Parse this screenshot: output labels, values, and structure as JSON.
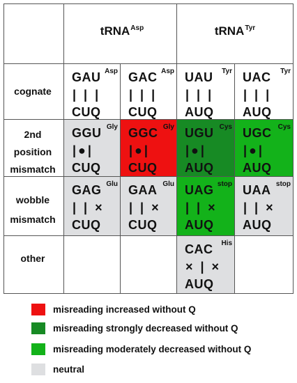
{
  "colors": {
    "red": "#ee1111",
    "dark_green": "#178a24",
    "green": "#13b21a",
    "grey": "#dedfe1"
  },
  "headers": {
    "asp": {
      "base": "tRNA",
      "sup": "Asp"
    },
    "tyr": {
      "base": "tRNA",
      "sup": "Tyr"
    }
  },
  "rows": [
    {
      "label_lines": [
        "cognate"
      ],
      "cells": [
        {
          "codon": "GAU",
          "aa": "Asp",
          "pairing": "| | |",
          "anticodon": "CUQ",
          "color": "none"
        },
        {
          "codon": "GAC",
          "aa": "Asp",
          "pairing": "| | |",
          "anticodon": "CUQ",
          "color": "none"
        },
        {
          "codon": "UAU",
          "aa": "Tyr",
          "pairing": "| | |",
          "anticodon": "AUQ",
          "color": "none"
        },
        {
          "codon": "UAC",
          "aa": "Tyr",
          "pairing": "| | |",
          "anticodon": "AUQ",
          "color": "none"
        }
      ]
    },
    {
      "label_lines": [
        "2nd",
        "position",
        "mismatch"
      ],
      "cells": [
        {
          "codon": "GGU",
          "aa": "Gly",
          "pairing": "|●|",
          "anticodon": "CUQ",
          "color": "grey"
        },
        {
          "codon": "GGC",
          "aa": "Gly",
          "pairing": "|●|",
          "anticodon": "CUQ",
          "color": "red"
        },
        {
          "codon": "UGU",
          "aa": "Cys",
          "pairing": "|●|",
          "anticodon": "AUQ",
          "color": "dark_green"
        },
        {
          "codon": "UGC",
          "aa": "Cys",
          "pairing": "|●|",
          "anticodon": "AUQ",
          "color": "green"
        }
      ]
    },
    {
      "label_lines": [
        "wobble",
        "mismatch"
      ],
      "cells": [
        {
          "codon": "GAG",
          "aa": "Glu",
          "pairing": "| | ×",
          "anticodon": "CUQ",
          "color": "grey"
        },
        {
          "codon": "GAA",
          "aa": "Glu",
          "pairing": "| | ×",
          "anticodon": "CUQ",
          "color": "grey"
        },
        {
          "codon": "UAG",
          "aa": "stop",
          "pairing": "| | ×",
          "anticodon": "AUQ",
          "color": "green"
        },
        {
          "codon": "UAA",
          "aa": "stop",
          "pairing": "| | ×",
          "anticodon": "AUQ",
          "color": "grey"
        }
      ]
    },
    {
      "label_lines": [
        "other"
      ],
      "cells": [
        null,
        null,
        {
          "codon": "CAC",
          "aa": "His",
          "pairing": "× | ×",
          "anticodon": "AUQ",
          "color": "grey"
        },
        null
      ]
    }
  ],
  "legend": [
    {
      "color": "red",
      "text": "misreading increased without Q"
    },
    {
      "color": "dark_green",
      "text": "misreading strongly decreased without Q"
    },
    {
      "color": "green",
      "text": "misreading moderately decreased without Q"
    },
    {
      "color": "grey",
      "text": "neutral"
    }
  ]
}
